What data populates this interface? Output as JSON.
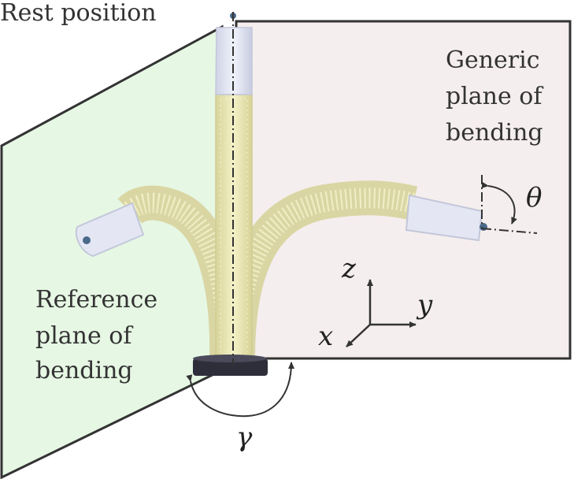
{
  "labels": {
    "rest_position": "Rest position",
    "generic_plane": [
      "Generic",
      "plane of",
      "bending"
    ],
    "reference_plane": [
      "Reference",
      "plane of",
      "bending"
    ]
  },
  "symbols": {
    "theta": "θ",
    "gamma": "γ",
    "axis_z": "z",
    "axis_y": "y",
    "axis_x": "x"
  },
  "colors": {
    "reference_plane_fill": "#e6f7e4",
    "generic_plane_fill": "#f5eeee",
    "plane_edge": "#333333",
    "tube_body": "#ece9b8",
    "tube_tip": "#e3e6f2",
    "base": "#2e2e3a"
  },
  "icons": {
    "rotation_arrow": "curved-double-arrow",
    "frame": "xyz-axes"
  }
}
